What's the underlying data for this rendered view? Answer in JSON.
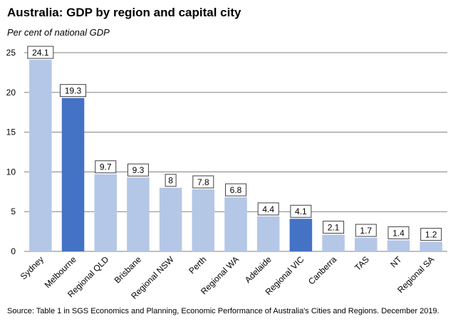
{
  "chart_data": {
    "type": "bar",
    "title": "Australia: GDP by region and capital city",
    "subtitle": "Per cent of national GDP",
    "source": "Source: Table 1 in SGS Economics and Planning, Economic Performance of Australia's Cities and Regions.  December 2019.",
    "categories": [
      "Sydney",
      "Melbourne",
      "Regional QLD",
      "Brisbane",
      "Regional NSW",
      "Perth",
      "Regional WA",
      "Adelaide",
      "Regional VIC",
      "Canberra",
      "TAS",
      "NT",
      "Regional SA"
    ],
    "values": [
      24.1,
      19.3,
      9.7,
      9.3,
      8,
      7.8,
      6.8,
      4.4,
      4.1,
      2.1,
      1.7,
      1.4,
      1.2
    ],
    "value_labels": [
      "24.1",
      "19.3",
      "9.7",
      "9.3",
      "8",
      "7.8",
      "6.8",
      "4.4",
      "4.1",
      "2.1",
      "1.7",
      "1.4",
      "1.2"
    ],
    "highlighted": [
      false,
      true,
      false,
      false,
      false,
      false,
      false,
      false,
      true,
      false,
      false,
      false,
      false
    ],
    "ylim": [
      0,
      25
    ],
    "yticks": [
      0,
      5,
      10,
      15,
      20,
      25
    ],
    "grid": true,
    "colors": {
      "bar": "#b4c7e7",
      "highlight": "#4472c4",
      "grid": "#808080"
    }
  }
}
